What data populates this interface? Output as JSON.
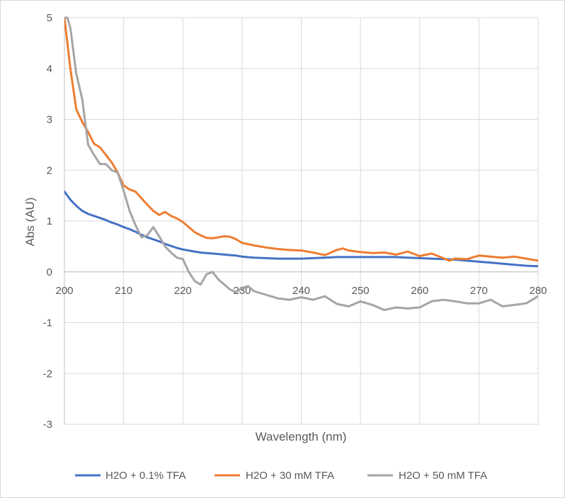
{
  "chart_data": {
    "type": "line",
    "title": "",
    "xlabel": "Wavelength (nm)",
    "ylabel": "Abs (AU)",
    "xlim": [
      200,
      280
    ],
    "ylim": [
      -3,
      5
    ],
    "x_ticks": [
      200,
      210,
      220,
      230,
      240,
      250,
      260,
      270,
      280
    ],
    "y_ticks": [
      5,
      4,
      3,
      2,
      1,
      0,
      -1,
      -2,
      -3
    ],
    "grid": true,
    "legend_position": "bottom",
    "series": [
      {
        "name": "H2O + 0.1% TFA",
        "color": "#4472c4",
        "x": [
          200,
          201,
          202,
          203,
          204,
          205,
          206,
          207,
          208,
          209,
          210,
          211,
          212,
          213,
          214,
          215,
          216,
          217,
          218,
          219,
          220,
          221,
          222,
          223,
          224,
          225,
          226,
          227,
          228,
          229,
          230,
          232,
          234,
          236,
          238,
          240,
          242,
          244,
          246,
          248,
          250,
          252,
          254,
          256,
          258,
          260,
          262,
          264,
          266,
          268,
          270,
          272,
          274,
          276,
          278,
          280
        ],
        "y": [
          1.58,
          1.42,
          1.3,
          1.2,
          1.14,
          1.1,
          1.06,
          1.02,
          0.97,
          0.93,
          0.88,
          0.84,
          0.79,
          0.73,
          0.68,
          0.64,
          0.6,
          0.55,
          0.51,
          0.47,
          0.44,
          0.42,
          0.4,
          0.38,
          0.37,
          0.36,
          0.35,
          0.34,
          0.33,
          0.32,
          0.3,
          0.28,
          0.27,
          0.26,
          0.26,
          0.26,
          0.27,
          0.28,
          0.29,
          0.29,
          0.29,
          0.29,
          0.29,
          0.29,
          0.28,
          0.27,
          0.26,
          0.25,
          0.24,
          0.22,
          0.2,
          0.18,
          0.16,
          0.14,
          0.12,
          0.11
        ]
      },
      {
        "name": "H2O + 30 mM TFA",
        "color": "#ed7d31",
        "x": [
          200,
          201,
          202,
          203,
          204,
          205,
          206,
          207,
          208,
          209,
          210,
          211,
          212,
          213,
          214,
          215,
          216,
          217,
          218,
          219,
          220,
          221,
          222,
          223,
          224,
          225,
          226,
          227,
          228,
          229,
          230,
          232,
          234,
          236,
          238,
          240,
          242,
          244,
          246,
          247,
          248,
          250,
          252,
          254,
          256,
          258,
          260,
          262,
          264,
          265,
          266,
          268,
          270,
          272,
          274,
          276,
          278,
          280
        ],
        "y": [
          5.0,
          4.0,
          3.2,
          2.95,
          2.75,
          2.52,
          2.45,
          2.3,
          2.15,
          1.95,
          1.7,
          1.62,
          1.58,
          1.45,
          1.32,
          1.2,
          1.12,
          1.18,
          1.1,
          1.05,
          0.98,
          0.88,
          0.78,
          0.72,
          0.67,
          0.66,
          0.68,
          0.7,
          0.69,
          0.64,
          0.57,
          0.52,
          0.48,
          0.45,
          0.43,
          0.42,
          0.38,
          0.33,
          0.43,
          0.46,
          0.42,
          0.39,
          0.37,
          0.38,
          0.34,
          0.4,
          0.31,
          0.36,
          0.27,
          0.22,
          0.26,
          0.25,
          0.32,
          0.3,
          0.28,
          0.3,
          0.26,
          0.22
        ]
      },
      {
        "name": "H2O + 50 mM TFA",
        "color": "#a5a5a5",
        "x": [
          200,
          200.5,
          201,
          202,
          203,
          204,
          205,
          206,
          207,
          208,
          209,
          210,
          211,
          212,
          213,
          214,
          215,
          216,
          217,
          218,
          219,
          220,
          221,
          222,
          223,
          224,
          225,
          226,
          227,
          228,
          229,
          230,
          231,
          232,
          234,
          236,
          238,
          240,
          242,
          244,
          246,
          248,
          250,
          252,
          254,
          256,
          258,
          260,
          262,
          264,
          266,
          268,
          270,
          272,
          274,
          276,
          278,
          280
        ],
        "y": [
          5.0,
          5.0,
          4.8,
          3.9,
          3.4,
          2.5,
          2.3,
          2.12,
          2.12,
          2.0,
          1.95,
          1.6,
          1.2,
          0.92,
          0.68,
          0.72,
          0.88,
          0.7,
          0.5,
          0.38,
          0.28,
          0.25,
          0.0,
          -0.18,
          -0.25,
          -0.05,
          0.0,
          -0.15,
          -0.25,
          -0.35,
          -0.4,
          -0.32,
          -0.28,
          -0.38,
          -0.45,
          -0.52,
          -0.55,
          -0.5,
          -0.55,
          -0.48,
          -0.63,
          -0.68,
          -0.58,
          -0.65,
          -0.75,
          -0.7,
          -0.72,
          -0.7,
          -0.58,
          -0.55,
          -0.58,
          -0.62,
          -0.62,
          -0.55,
          -0.68,
          -0.65,
          -0.62,
          -0.48
        ]
      }
    ]
  }
}
